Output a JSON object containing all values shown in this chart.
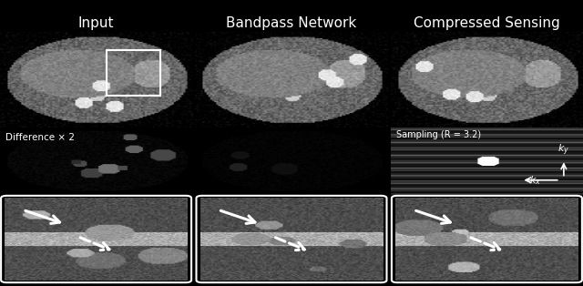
{
  "col_titles": [
    "Input",
    "Bandpass Network",
    "Compressed Sensing"
  ],
  "col_title_fontsize": 11,
  "label_diff": "Difference × 2",
  "label_sampling": "Sampling (R = 3.2)",
  "label_ky": "$k_y$",
  "label_kx": "$k_x$",
  "fig_width": 6.4,
  "fig_height": 3.14,
  "bg_color": "#000000",
  "text_color": "#ffffff"
}
